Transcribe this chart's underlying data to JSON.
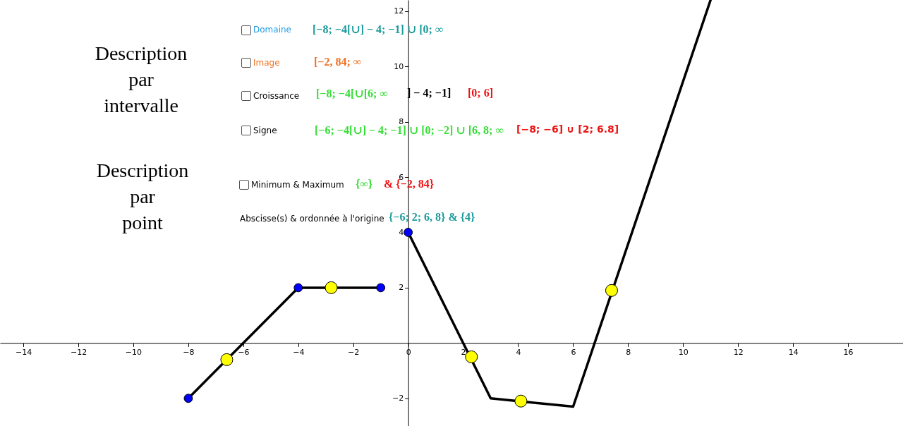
{
  "chart_data": {
    "type": "line",
    "xlim": [
      -14.85,
      18
    ],
    "ylim": [
      -3,
      12.4
    ],
    "xticks": [
      -14,
      -12,
      -10,
      -8,
      -6,
      -4,
      -2,
      0,
      2,
      4,
      6,
      8,
      10,
      12,
      14,
      16
    ],
    "yticks": [
      -2,
      2,
      4,
      6,
      8,
      10,
      12
    ],
    "series": [
      {
        "x": [
          -8,
          -4,
          -1
        ],
        "values": [
          -2,
          2,
          2
        ],
        "color": "#000000",
        "marker": "none"
      },
      {
        "x": [
          0,
          3,
          6,
          11
        ],
        "values": [
          4,
          -2,
          -2.3,
          12.4
        ],
        "color": "#000000",
        "marker": "none"
      },
      {
        "type": "scatter",
        "x": [
          -8,
          -4,
          -1,
          0
        ],
        "values": [
          -2,
          2,
          2,
          4
        ],
        "color": "#0000ff",
        "marker": "circle"
      },
      {
        "type": "scatter",
        "x": [
          -6.6,
          -2.8,
          2.3,
          4.1,
          7.4
        ],
        "values": [
          -0.6,
          2,
          -0.5,
          -2.1,
          1.9
        ],
        "color": "#ffff00",
        "marker": "circle"
      }
    ],
    "annotations": [
      "Description\npar\nintervalle",
      "Description\npar\npoint",
      "Domaine",
      "[−8; −4[∪] − 4; −1] ∪ [0; ∞",
      "Image",
      "[−2, 84; ∞",
      "Croissance",
      "[−8; −4[∪[6; ∞",
      "] − 4; −1]",
      "[0; 6]",
      "Signe",
      "[−6; −4[∪] − 4; −1] ∪ [0; −2] ∪ [6, 8; ∞",
      "[−8; −6] ∪ [2; 6.8]",
      "Minimum & Maximum",
      "{∞}",
      "& {−2, 84}",
      "Abscisse(s) & ordonnée à l'origine",
      "{−6; 2; 6, 8} & {4}"
    ]
  }
}
